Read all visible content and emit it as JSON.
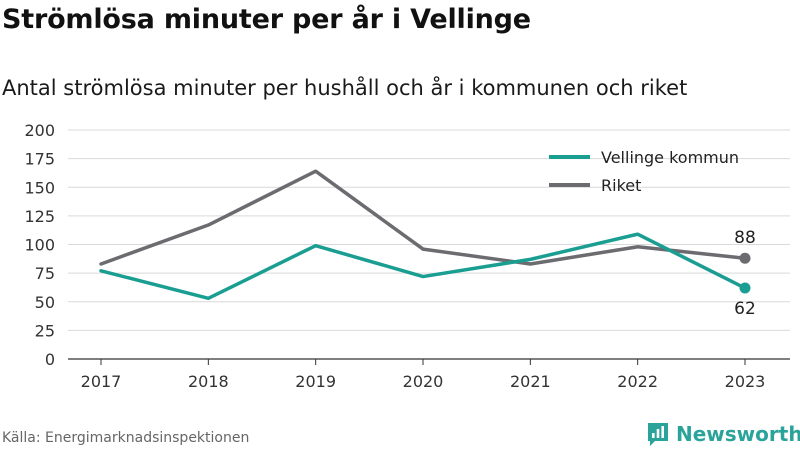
{
  "title": "Strömlösa minuter per år i Vellinge",
  "subtitle": "Antal strömlösa minuter per hushåll och år i kommunen och riket",
  "source": "Källa: Energimarknadsinspektionen",
  "brand": "Newsworthy",
  "colors": {
    "vellinge": "#1a9e92",
    "riket": "#6b6b70",
    "grid": "#d9d9d9",
    "brand": "#2aa39a"
  },
  "chart_data": {
    "type": "line",
    "x": [
      "2017",
      "2018",
      "2019",
      "2020",
      "2021",
      "2022",
      "2023"
    ],
    "yticks": [
      0,
      25,
      50,
      75,
      100,
      125,
      150,
      175,
      200
    ],
    "ylim": [
      0,
      200
    ],
    "grid": "horizontal",
    "legend_position": "top-right",
    "series": [
      {
        "name": "Vellinge kommun",
        "values": [
          77,
          53,
          99,
          72,
          87,
          109,
          62
        ],
        "end_label": "62"
      },
      {
        "name": "Riket",
        "values": [
          83,
          117,
          164,
          96,
          83,
          98,
          88
        ],
        "end_label": "88"
      }
    ]
  }
}
